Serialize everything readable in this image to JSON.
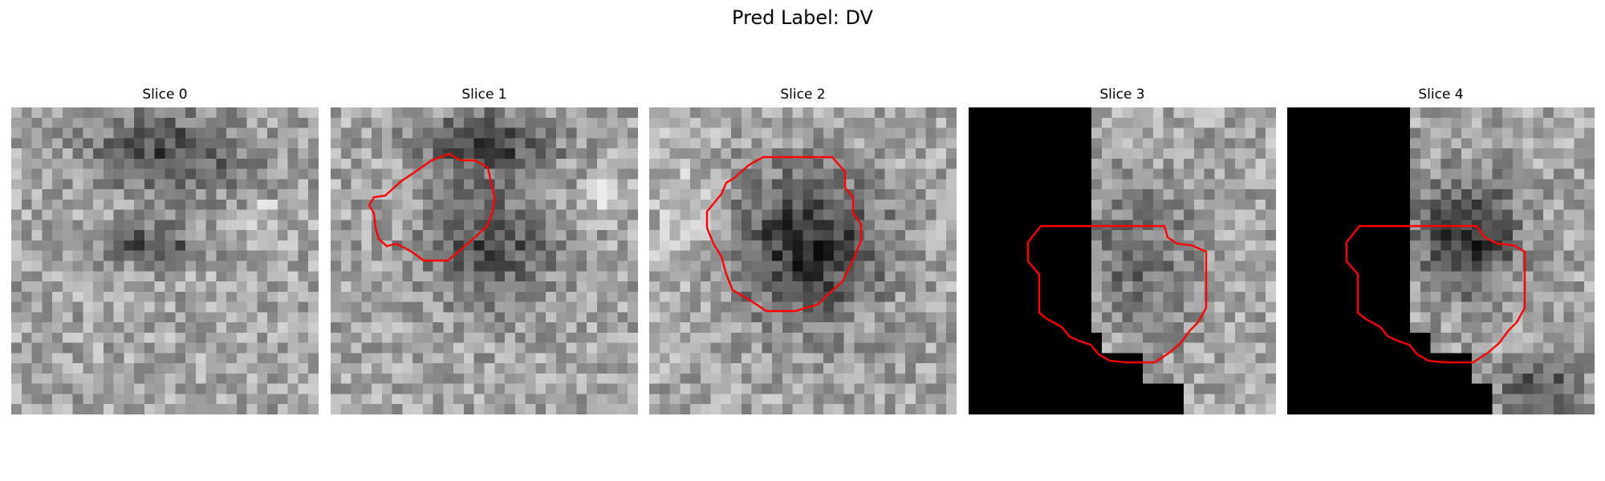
{
  "figure": {
    "title": "Pred Label: DV"
  },
  "panels": [
    {
      "title": "Slice 0",
      "contour": false,
      "mask_color": "#ff0000"
    },
    {
      "title": "Slice 1",
      "contour": true,
      "mask_color": "#ff0000"
    },
    {
      "title": "Slice 2",
      "contour": true,
      "mask_color": "#ff0000"
    },
    {
      "title": "Slice 3",
      "contour": true,
      "mask_color": "#ff0000"
    },
    {
      "title": "Slice 4",
      "contour": true,
      "mask_color": "#ff0000"
    }
  ],
  "colors": {
    "contour": "#ff0000",
    "background": "#ffffff",
    "mask_padding": "#000000"
  }
}
